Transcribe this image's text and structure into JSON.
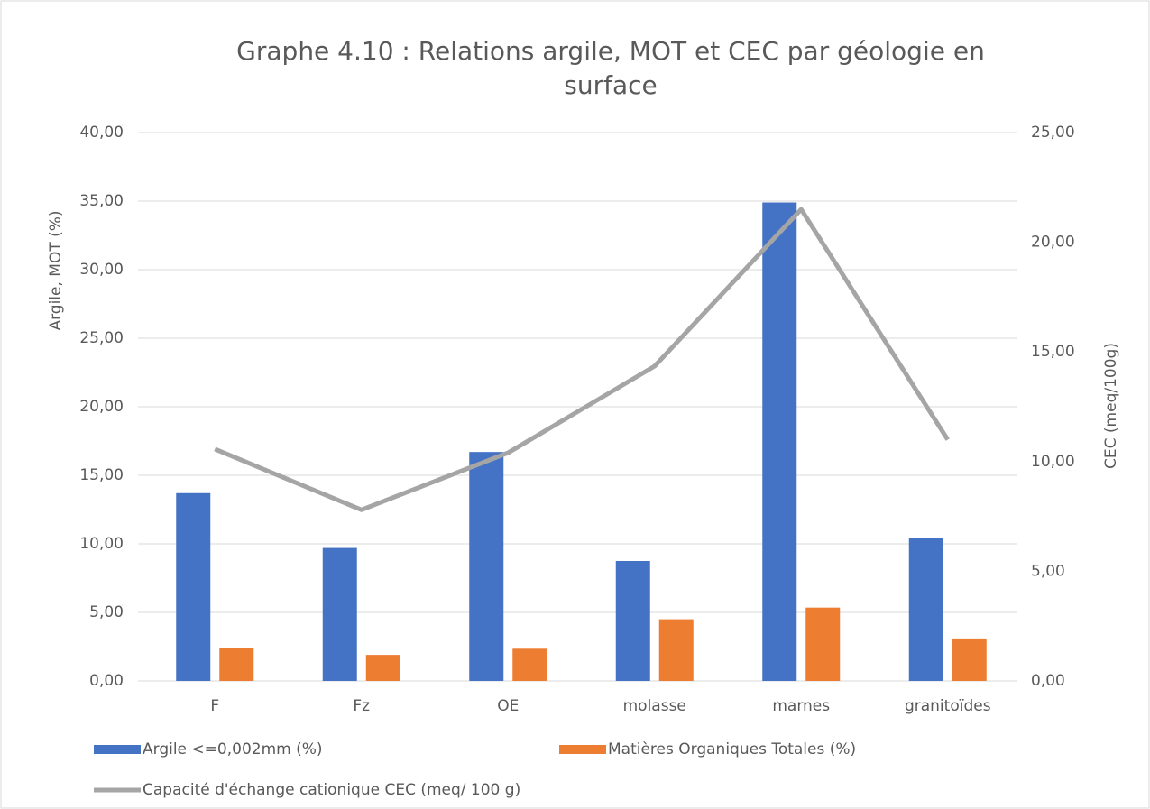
{
  "chart_data": {
    "type": "bar_line",
    "title": "Graphe 4.10 : Relations argile, MOT et CEC par géologie en surface",
    "ylabel": "Argile, MOT (%)",
    "y2label": "CEC (meq/100g)",
    "categories": [
      "F",
      "Fz",
      "OE",
      "molasse",
      "marnes",
      "granitoïdes"
    ],
    "series": [
      {
        "name": "Argile <=0,002mm (%)",
        "type": "bar",
        "color": "#4472c4",
        "values": [
          13.7,
          9.7,
          16.7,
          8.75,
          34.9,
          10.4
        ]
      },
      {
        "name": "Matières Organiques Totales (%)",
        "type": "bar",
        "color": "#ed7d31",
        "values": [
          2.4,
          1.9,
          2.35,
          4.5,
          5.35,
          3.1
        ]
      },
      {
        "name": "Capacité d'échange cationique CEC (meq/ 100 g)",
        "type": "line",
        "color": "#a5a5a5",
        "axis": "y2",
        "values": [
          10.57,
          7.8,
          10.4,
          14.35,
          21.5,
          11.0
        ]
      }
    ],
    "ylim": [
      0,
      40
    ],
    "yticks": [
      {
        "value": 0,
        "label": "0,00"
      },
      {
        "value": 5,
        "label": "5,00"
      },
      {
        "value": 10,
        "label": "10,00"
      },
      {
        "value": 15,
        "label": "15,00"
      },
      {
        "value": 20,
        "label": "20,00"
      },
      {
        "value": 25,
        "label": "25,00"
      },
      {
        "value": 30,
        "label": "30,00"
      },
      {
        "value": 35,
        "label": "35,00"
      },
      {
        "value": 40,
        "label": "40,00"
      }
    ],
    "y2lim": [
      0,
      25
    ],
    "y2ticks": [
      {
        "value": 0,
        "label": "0,00"
      },
      {
        "value": 5,
        "label": "5,00"
      },
      {
        "value": 10,
        "label": "10,00"
      },
      {
        "value": 15,
        "label": "15,00"
      },
      {
        "value": 20,
        "label": "20,00"
      },
      {
        "value": 25,
        "label": "25,00"
      }
    ],
    "grid": true,
    "legend": "bottom"
  }
}
